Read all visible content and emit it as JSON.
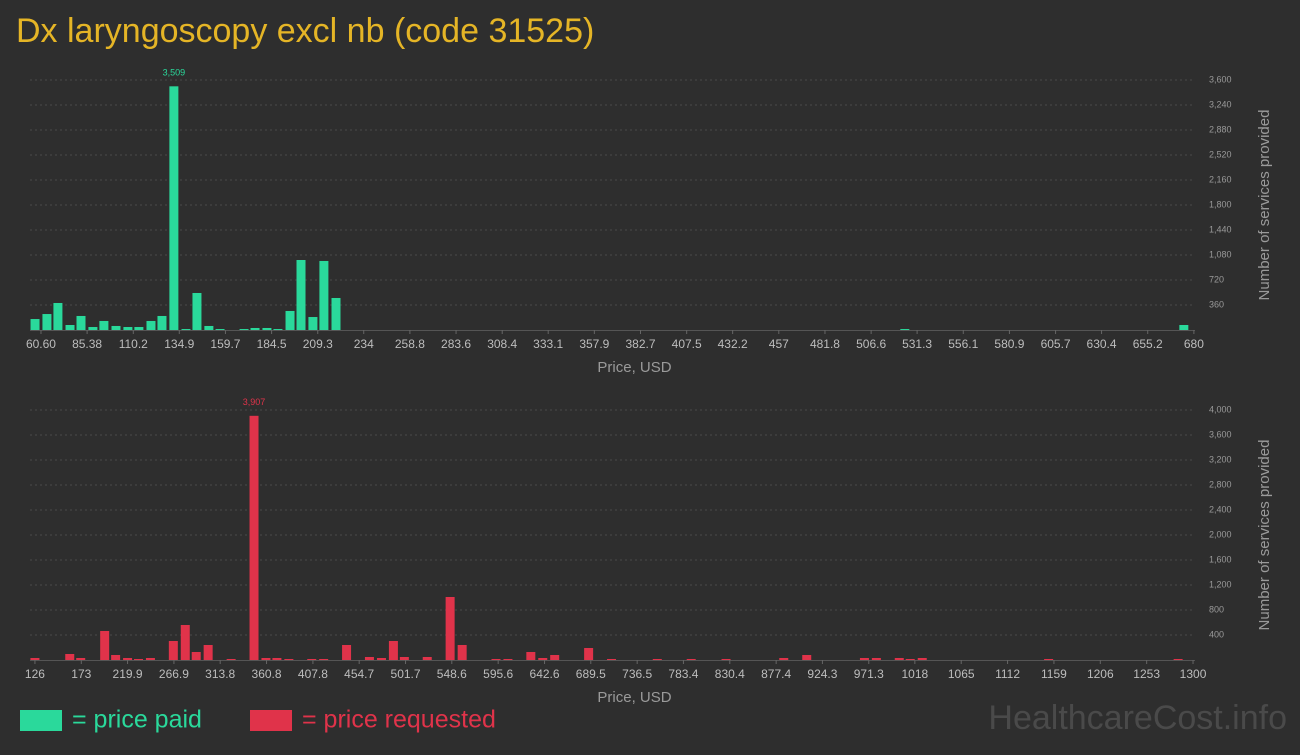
{
  "title": "Dx laryngoscopy excl nb (code 31525)",
  "watermark": "HealthcareCost.info",
  "chart_data": [
    {
      "type": "bar",
      "x_label": "Price, USD",
      "y_label": "Number of services provided",
      "xlim": [
        54.7,
        680.6
      ],
      "ylim": [
        0,
        3600
      ],
      "xticks": [
        {
          "value": 60.6,
          "label": "60.60"
        },
        85.38,
        110.2,
        134.9,
        159.7,
        184.5,
        209.3,
        234,
        258.8,
        283.6,
        308.4,
        333.1,
        357.9,
        382.7,
        407.5,
        432.2,
        457,
        481.8,
        506.6,
        531.3,
        556.1,
        580.9,
        605.7,
        630.4,
        655.2,
        680
      ],
      "yticks": [
        360,
        720,
        {
          "value": 1080,
          "label": "1,080"
        },
        {
          "value": 1440,
          "label": "1,440"
        },
        {
          "value": 1800,
          "label": "1,800"
        },
        {
          "value": 2160,
          "label": "2,160"
        },
        {
          "value": 2520,
          "label": "2,520"
        },
        {
          "value": 2880,
          "label": "2,880"
        },
        {
          "value": 3240,
          "label": "3,240"
        },
        {
          "value": 3600,
          "label": "3,600"
        }
      ],
      "grid": true,
      "series": [
        {
          "name": "= price paid",
          "color": "#2ad99b",
          "x": [
            57.4,
            63.8,
            69.7,
            76.2,
            82.1,
            88.5,
            94.4,
            100.9,
            107.3,
            113.2,
            119.7,
            125.6,
            132.0,
            138.5,
            144.4,
            150.8,
            156.8,
            169.7,
            175.6,
            182.0,
            187.9,
            194.4,
            200.3,
            206.7,
            212.6,
            219.1,
            524.7,
            674.6
          ],
          "values": [
            158,
            230,
            389,
            72,
            202,
            43,
            130,
            58,
            43,
            43,
            130,
            202,
            3509,
            14,
            533,
            58,
            14,
            14,
            29,
            29,
            14,
            274,
            1008,
            187,
            994,
            461,
            14,
            72
          ],
          "value_labels": [
            null,
            null,
            null,
            null,
            null,
            null,
            null,
            null,
            null,
            null,
            null,
            null,
            "3,509",
            null,
            null,
            null,
            null,
            null,
            null,
            null,
            null,
            null,
            null,
            null,
            null,
            null,
            null,
            null
          ]
        }
      ]
    },
    {
      "type": "bar",
      "x_label": "Price, USD",
      "y_label": "Number of services provided",
      "xlim": [
        121,
        1302
      ],
      "ylim": [
        0,
        4000
      ],
      "xticks": [
        126,
        173,
        219.9,
        266.9,
        313.8,
        360.8,
        407.8,
        454.7,
        501.7,
        548.6,
        595.6,
        642.6,
        689.5,
        736.5,
        783.4,
        830.4,
        877.4,
        924.3,
        971.3,
        1018,
        1065,
        1112,
        1159,
        1206,
        1253,
        1300
      ],
      "yticks": [
        400,
        800,
        {
          "value": 1200,
          "label": "1,200"
        },
        {
          "value": 1600,
          "label": "1,600"
        },
        {
          "value": 2000,
          "label": "2,000"
        },
        {
          "value": 2400,
          "label": "2,400"
        },
        {
          "value": 2800,
          "label": "2,800"
        },
        {
          "value": 3200,
          "label": "3,200"
        },
        {
          "value": 3600,
          "label": "3,600"
        },
        {
          "value": 4000,
          "label": "4,000"
        }
      ],
      "grid": true,
      "series": [
        {
          "name": "= price requested",
          "color": "#e0334a",
          "x": [
            126.0,
            161.3,
            172.4,
            196.7,
            207.8,
            219.9,
            231.0,
            243.1,
            266.3,
            278.4,
            289.5,
            301.6,
            324.9,
            348.1,
            360.2,
            371.3,
            383.4,
            406.6,
            418.7,
            441.9,
            465.1,
            477.3,
            489.4,
            500.5,
            523.7,
            546.9,
            559.1,
            593.4,
            605.5,
            628.7,
            640.8,
            652.9,
            687.3,
            710.5,
            756.9,
            791.3,
            826.6,
            885.1,
            908.4,
            966.9,
            979.0,
            1002.2,
            1013.3,
            1025.5,
            1153.6,
            1284.9
          ],
          "values": [
            32,
            96,
            32,
            464,
            80,
            32,
            16,
            32,
            304,
            560,
            128,
            240,
            16,
            3907,
            32,
            32,
            16,
            16,
            16,
            240,
            48,
            32,
            304,
            48,
            48,
            1008,
            240,
            16,
            16,
            128,
            32,
            80,
            192,
            16,
            16,
            16,
            16,
            32,
            80,
            32,
            32,
            32,
            16,
            32,
            16,
            16
          ],
          "value_labels": [
            null,
            null,
            null,
            null,
            null,
            null,
            null,
            null,
            null,
            null,
            null,
            null,
            null,
            "3,907",
            null,
            null,
            null,
            null,
            null,
            null,
            null,
            null,
            null,
            null,
            null,
            null,
            null,
            null,
            null,
            null,
            null,
            null,
            null,
            null,
            null,
            null,
            null,
            null,
            null,
            null,
            null,
            null,
            null,
            null,
            null,
            null
          ]
        }
      ]
    }
  ]
}
